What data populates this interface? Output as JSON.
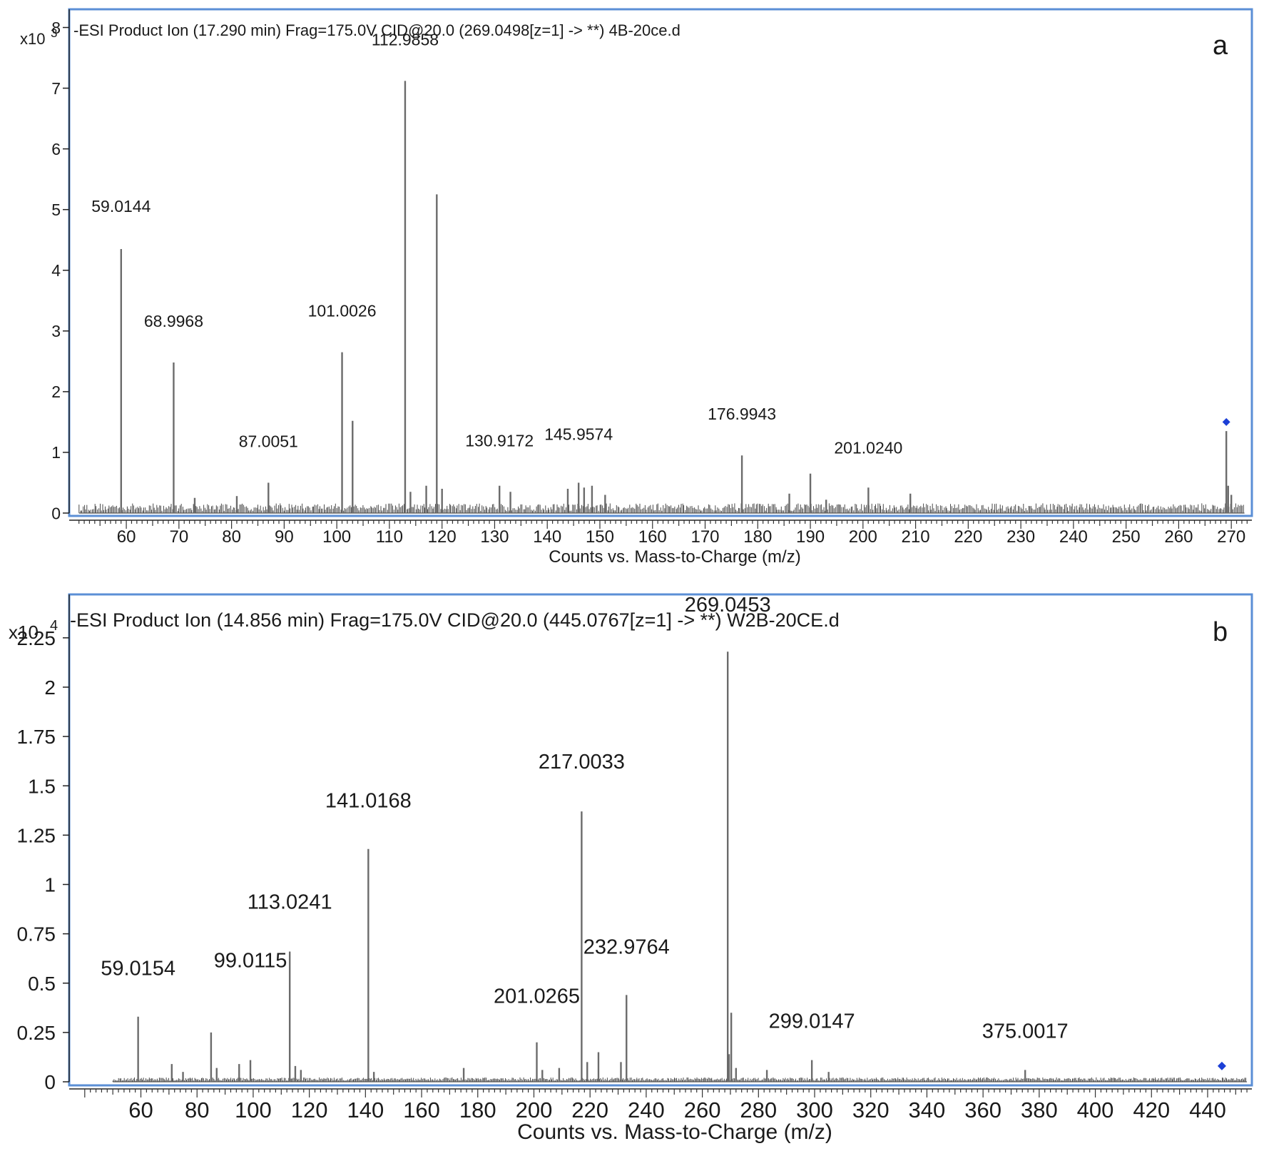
{
  "chart_data": [
    {
      "type": "bar",
      "panel_letter": "a",
      "title": "-ESI Product Ion (17.290 min) Frag=175.0V CID@20.0 (269.0498[z=1] -> **) 4B-20ce.d",
      "xlabel": "Counts vs. Mass-to-Charge (m/z)",
      "ylabel": "",
      "y_multiplier": "x10",
      "y_exponent": "3",
      "xlim": [
        50.5,
        273.5
      ],
      "ylim": [
        0,
        8.3
      ],
      "xticks": [
        60,
        70,
        80,
        90,
        100,
        110,
        120,
        130,
        140,
        150,
        160,
        170,
        180,
        190,
        200,
        210,
        220,
        230,
        240,
        250,
        260,
        270
      ],
      "yticks": [
        0,
        1,
        2,
        3,
        4,
        5,
        6,
        7,
        8
      ],
      "ytick_labels": [
        "0",
        "1",
        "2",
        "3",
        "4",
        "5",
        "6",
        "7",
        "8"
      ],
      "peaks": [
        {
          "mz": 59.0144,
          "intensity": 4.35,
          "label": "59.0144"
        },
        {
          "mz": 68.9968,
          "intensity": 2.48,
          "label": "68.9968"
        },
        {
          "mz": 73.0,
          "intensity": 0.25
        },
        {
          "mz": 81.0,
          "intensity": 0.28
        },
        {
          "mz": 87.0051,
          "intensity": 0.5,
          "label": "87.0051"
        },
        {
          "mz": 101.0026,
          "intensity": 2.65,
          "label": "101.0026"
        },
        {
          "mz": 103.0,
          "intensity": 1.52
        },
        {
          "mz": 112.9858,
          "intensity": 7.12,
          "label": "112.9858"
        },
        {
          "mz": 114.0,
          "intensity": 0.35
        },
        {
          "mz": 117.0,
          "intensity": 0.45
        },
        {
          "mz": 119.0,
          "intensity": 5.25
        },
        {
          "mz": 120.0,
          "intensity": 0.4
        },
        {
          "mz": 130.9172,
          "intensity": 0.45,
          "label": "130.9172"
        },
        {
          "mz": 133.0,
          "intensity": 0.35
        },
        {
          "mz": 143.9,
          "intensity": 0.4
        },
        {
          "mz": 145.9574,
          "intensity": 0.5,
          "label": "145.9574"
        },
        {
          "mz": 147.0,
          "intensity": 0.42
        },
        {
          "mz": 148.5,
          "intensity": 0.45
        },
        {
          "mz": 151.0,
          "intensity": 0.3
        },
        {
          "mz": 176.9943,
          "intensity": 0.95,
          "label": "176.9943"
        },
        {
          "mz": 186.0,
          "intensity": 0.32
        },
        {
          "mz": 190.0,
          "intensity": 0.65
        },
        {
          "mz": 193.0,
          "intensity": 0.22
        },
        {
          "mz": 201.024,
          "intensity": 0.42,
          "label": "201.0240"
        },
        {
          "mz": 209.0,
          "intensity": 0.32
        },
        {
          "mz": 269.0498,
          "intensity": 1.35
        },
        {
          "mz": 269.4,
          "intensity": 0.45
        },
        {
          "mz": 270.0,
          "intensity": 0.3
        }
      ],
      "precursor_mz": 269.0498,
      "precursor_level": 1.5,
      "baseline_level": 0.12,
      "colors": {
        "frame": "#5b8fd6",
        "line": "#6b6b6b",
        "marker": "#1c3fd6"
      }
    },
    {
      "type": "bar",
      "panel_letter": "b",
      "title": "-ESI Product Ion (14.856 min) Frag=175.0V CID@20.0 (445.0767[z=1] -> **) W2B-20CE.d",
      "xlabel": "Counts vs. Mass-to-Charge (m/z)",
      "ylabel": "",
      "y_multiplier": "x10",
      "y_exponent": "4",
      "xlim": [
        37,
        455
      ],
      "ylim": [
        0,
        2.47
      ],
      "xticks": [
        60,
        80,
        100,
        120,
        140,
        160,
        180,
        200,
        220,
        240,
        260,
        280,
        300,
        320,
        340,
        360,
        380,
        400,
        420,
        440
      ],
      "yticks": [
        0,
        0.25,
        0.5,
        0.75,
        1,
        1.25,
        1.5,
        1.75,
        2,
        2.25
      ],
      "ytick_labels": [
        "0",
        "0.25",
        "0.5",
        "0.75",
        "1",
        "1.25",
        "1.5",
        "1.75",
        "2",
        "2.25"
      ],
      "peaks": [
        {
          "mz": 59.0154,
          "intensity": 0.33,
          "label": "59.0154"
        },
        {
          "mz": 71.0,
          "intensity": 0.09
        },
        {
          "mz": 75.0,
          "intensity": 0.05
        },
        {
          "mz": 85.0,
          "intensity": 0.25
        },
        {
          "mz": 87.0,
          "intensity": 0.07
        },
        {
          "mz": 95.0,
          "intensity": 0.09
        },
        {
          "mz": 99.0115,
          "intensity": 0.11,
          "label": "99.0115"
        },
        {
          "mz": 113.0241,
          "intensity": 0.66,
          "label": "113.0241"
        },
        {
          "mz": 115.0,
          "intensity": 0.08
        },
        {
          "mz": 117.0,
          "intensity": 0.06
        },
        {
          "mz": 141.0168,
          "intensity": 1.18,
          "label": "141.0168"
        },
        {
          "mz": 143.0,
          "intensity": 0.05
        },
        {
          "mz": 175.0,
          "intensity": 0.07
        },
        {
          "mz": 201.0265,
          "intensity": 0.2,
          "label": "201.0265"
        },
        {
          "mz": 203.0,
          "intensity": 0.06
        },
        {
          "mz": 209.0,
          "intensity": 0.07
        },
        {
          "mz": 217.0033,
          "intensity": 1.37,
          "label": "217.0033"
        },
        {
          "mz": 219.0,
          "intensity": 0.1
        },
        {
          "mz": 223.0,
          "intensity": 0.15
        },
        {
          "mz": 231.0,
          "intensity": 0.1
        },
        {
          "mz": 232.9764,
          "intensity": 0.44,
          "label": "232.9764"
        },
        {
          "mz": 269.0453,
          "intensity": 2.18,
          "label": "269.0453"
        },
        {
          "mz": 269.5,
          "intensity": 0.14
        },
        {
          "mz": 270.3,
          "intensity": 0.35
        },
        {
          "mz": 272.0,
          "intensity": 0.07
        },
        {
          "mz": 283.0,
          "intensity": 0.06
        },
        {
          "mz": 299.0147,
          "intensity": 0.11,
          "label": "299.0147"
        },
        {
          "mz": 305.0,
          "intensity": 0.05
        },
        {
          "mz": 375.0017,
          "intensity": 0.06,
          "label": "375.0017"
        }
      ],
      "precursor_mz": 445.0767,
      "precursor_level": 0.08,
      "baseline_level": 0.02,
      "colors": {
        "frame": "#5b8fd6",
        "line": "#6b6b6b",
        "marker": "#1c3fd6"
      }
    }
  ]
}
